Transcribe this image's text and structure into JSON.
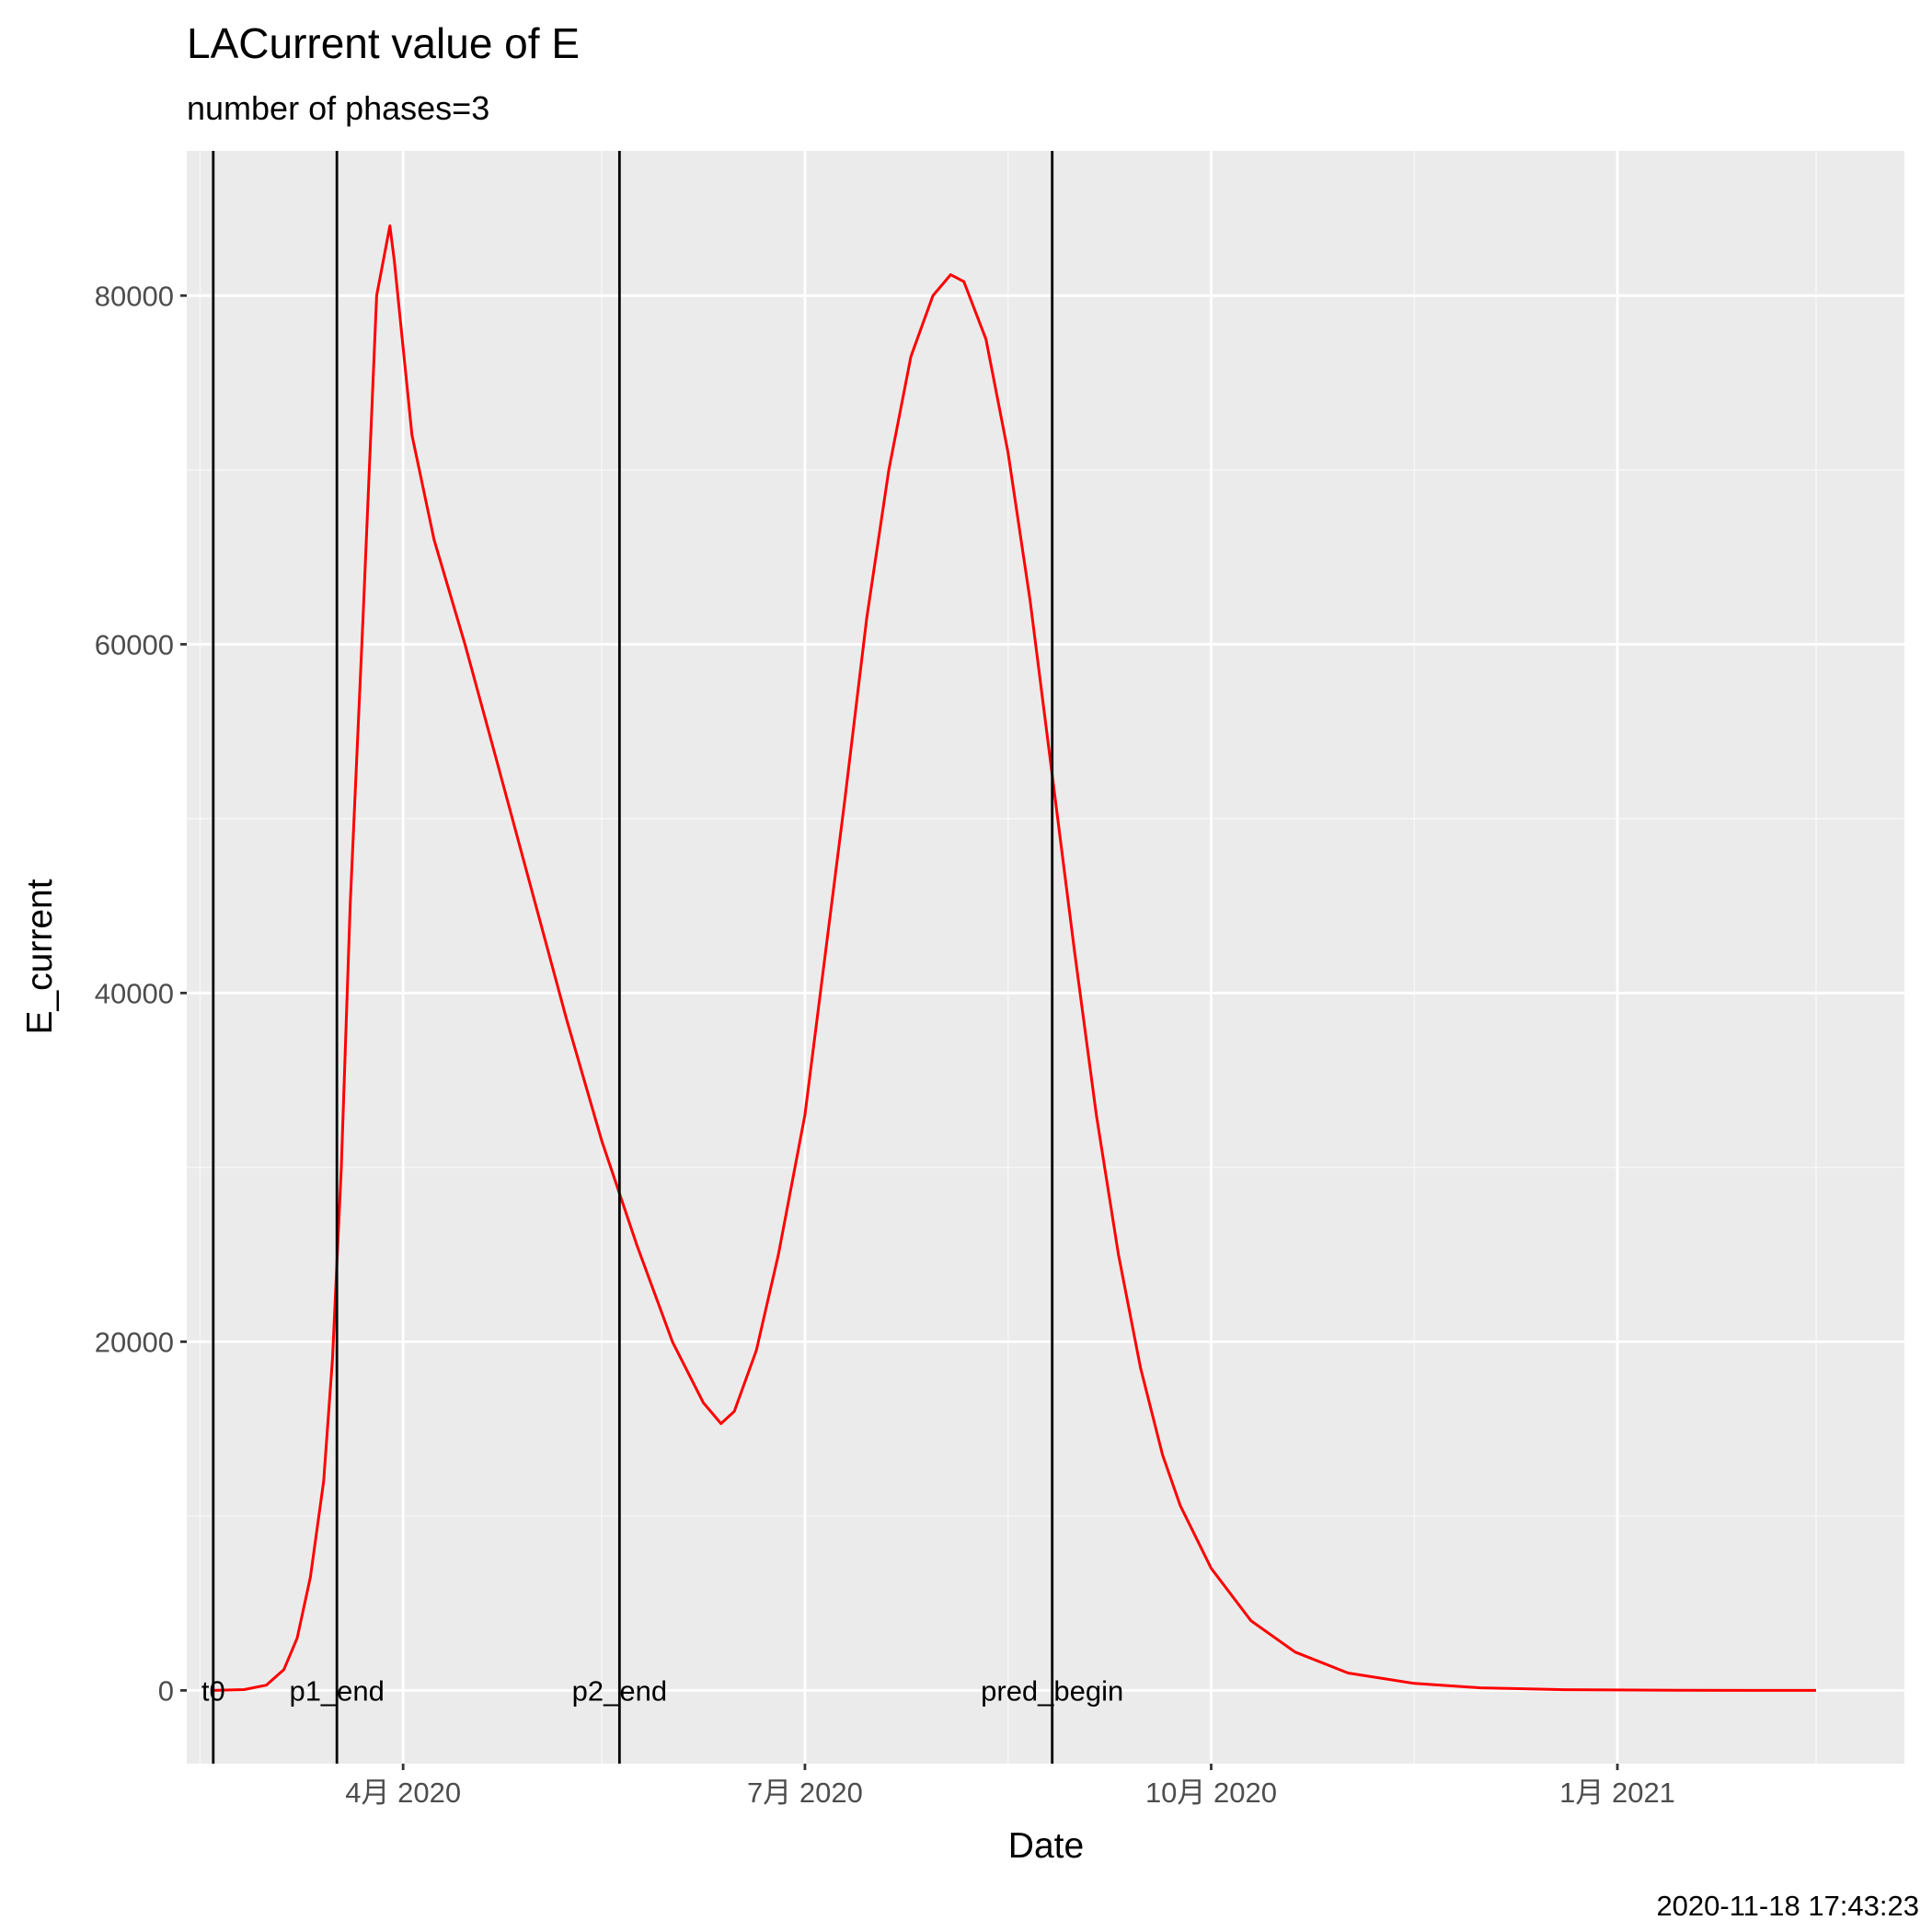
{
  "chart_data": {
    "type": "line",
    "title": "LACurrent value of E",
    "subtitle": "number of phases=3",
    "xlabel": "Date",
    "ylabel": "E_current",
    "caption": "2020-11-18 17:43:23",
    "xlim": [
      "2020-02-12",
      "2021-03-07"
    ],
    "ylim": [
      -4200,
      88300
    ],
    "x_ticks": [
      {
        "date": "2020-04-01",
        "label": "4月 2020"
      },
      {
        "date": "2020-07-01",
        "label": "7月 2020"
      },
      {
        "date": "2020-10-01",
        "label": "10月 2020"
      },
      {
        "date": "2021-01-01",
        "label": "1月 2021"
      }
    ],
    "x_minor_ticks": [
      "2020-02-15",
      "2020-05-16",
      "2020-08-16",
      "2020-11-16",
      "2021-02-15"
    ],
    "y_ticks": [
      0,
      20000,
      40000,
      60000,
      80000
    ],
    "y_minor_ticks": [
      10000,
      30000,
      50000,
      70000
    ],
    "grid": true,
    "background": "#ebebeb",
    "series": [
      {
        "color": "#ff0000",
        "points": [
          [
            "2020-02-18",
            0
          ],
          [
            "2020-02-25",
            50
          ],
          [
            "2020-03-01",
            300
          ],
          [
            "2020-03-05",
            1200
          ],
          [
            "2020-03-08",
            3000
          ],
          [
            "2020-03-11",
            6500
          ],
          [
            "2020-03-14",
            12000
          ],
          [
            "2020-03-16",
            19000
          ],
          [
            "2020-03-18",
            30000
          ],
          [
            "2020-03-20",
            45000
          ],
          [
            "2020-03-23",
            62000
          ],
          [
            "2020-03-26",
            80000
          ],
          [
            "2020-03-29",
            84000
          ],
          [
            "2020-03-30",
            82000
          ],
          [
            "2020-04-03",
            72000
          ],
          [
            "2020-04-08",
            66000
          ],
          [
            "2020-04-15",
            60000
          ],
          [
            "2020-04-22",
            53500
          ],
          [
            "2020-04-30",
            46000
          ],
          [
            "2020-05-08",
            38500
          ],
          [
            "2020-05-16",
            31500
          ],
          [
            "2020-05-24",
            25500
          ],
          [
            "2020-06-01",
            20000
          ],
          [
            "2020-06-08",
            16500
          ],
          [
            "2020-06-12",
            15300
          ],
          [
            "2020-06-15",
            16000
          ],
          [
            "2020-06-20",
            19500
          ],
          [
            "2020-06-25",
            25000
          ],
          [
            "2020-07-01",
            33000
          ],
          [
            "2020-07-05",
            41000
          ],
          [
            "2020-07-10",
            51000
          ],
          [
            "2020-07-15",
            61500
          ],
          [
            "2020-07-20",
            70000
          ],
          [
            "2020-07-25",
            76500
          ],
          [
            "2020-07-30",
            80000
          ],
          [
            "2020-08-03",
            81200
          ],
          [
            "2020-08-06",
            80800
          ],
          [
            "2020-08-11",
            77500
          ],
          [
            "2020-08-16",
            71000
          ],
          [
            "2020-08-21",
            62500
          ],
          [
            "2020-08-26",
            52500
          ],
          [
            "2020-08-31",
            42500
          ],
          [
            "2020-09-05",
            33000
          ],
          [
            "2020-09-10",
            25000
          ],
          [
            "2020-09-15",
            18500
          ],
          [
            "2020-09-20",
            13500
          ],
          [
            "2020-09-24",
            10600
          ],
          [
            "2020-10-01",
            7000
          ],
          [
            "2020-10-10",
            4000
          ],
          [
            "2020-10-20",
            2200
          ],
          [
            "2020-11-01",
            1000
          ],
          [
            "2020-11-16",
            400
          ],
          [
            "2020-12-01",
            150
          ],
          [
            "2020-12-20",
            40
          ],
          [
            "2021-01-15",
            5
          ],
          [
            "2021-02-15",
            0
          ]
        ]
      }
    ],
    "vlines": [
      {
        "date": "2020-02-18",
        "label": "t0"
      },
      {
        "date": "2020-03-17",
        "label": "p1_end"
      },
      {
        "date": "2020-05-20",
        "label": "p2_end"
      },
      {
        "date": "2020-08-26",
        "label": "pred_begin"
      }
    ]
  }
}
